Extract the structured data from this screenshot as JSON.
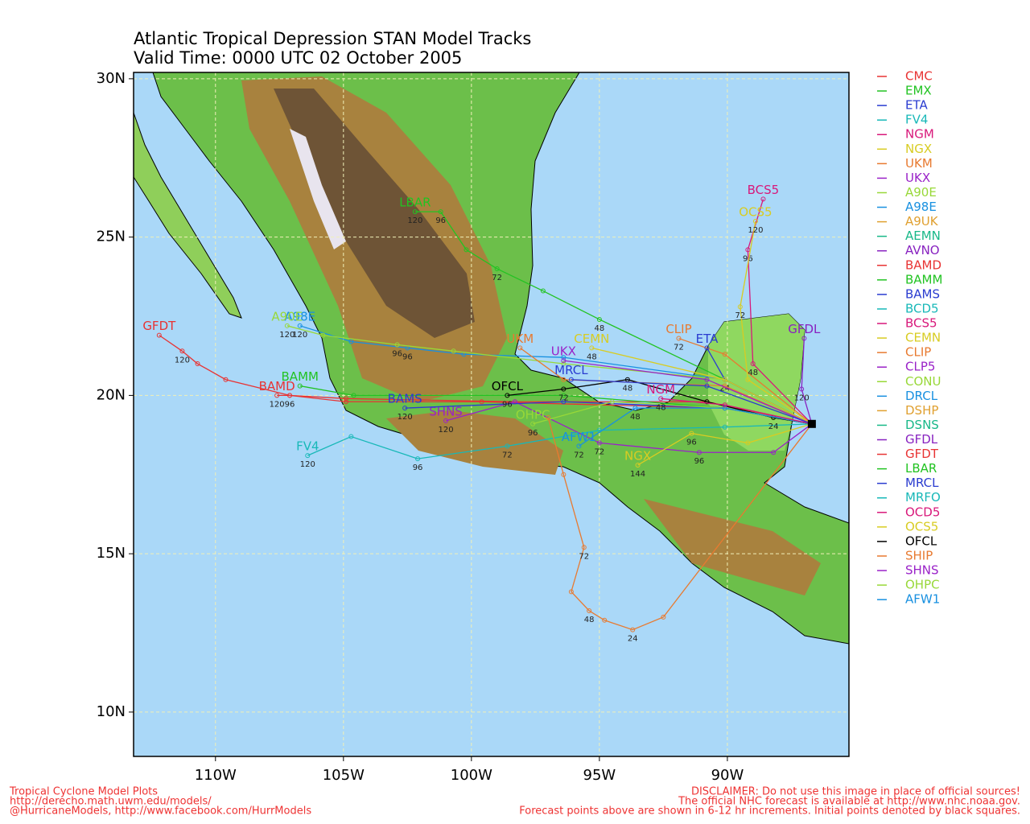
{
  "chart_data": {
    "type": "track-map",
    "title": "Atlantic Tropical Depression STAN Model Tracks",
    "subtitle": "Valid Time: 0000 UTC 02 October 2005",
    "xlim": [
      -113.2,
      -85.25
    ],
    "ylim": [
      8.6,
      30.2
    ],
    "xticks": [
      {
        "value": -110,
        "label": "110W"
      },
      {
        "value": -105,
        "label": "105W"
      },
      {
        "value": -100,
        "label": "100W"
      },
      {
        "value": -95,
        "label": "95W"
      },
      {
        "value": -90,
        "label": "90W"
      }
    ],
    "yticks": [
      {
        "value": 10,
        "label": "10N"
      },
      {
        "value": 15,
        "label": "15N"
      },
      {
        "value": 20,
        "label": "20N"
      },
      {
        "value": 25,
        "label": "25N"
      },
      {
        "value": 30,
        "label": "30N"
      }
    ],
    "grid": true,
    "legend": [
      {
        "name": "CMC",
        "color": "#e83333"
      },
      {
        "name": "EMX",
        "color": "#22c322"
      },
      {
        "name": "ETA",
        "color": "#2a3cd0"
      },
      {
        "name": "FV4",
        "color": "#18b8b8"
      },
      {
        "name": "NGM",
        "color": "#d8187a"
      },
      {
        "name": "NGX",
        "color": "#d8cc22"
      },
      {
        "name": "UKM",
        "color": "#e87a30"
      },
      {
        "name": "UKX",
        "color": "#9a22c8"
      },
      {
        "name": "A90E",
        "color": "#98d838"
      },
      {
        "name": "A98E",
        "color": "#1890e0"
      },
      {
        "name": "A9UK",
        "color": "#e0a030"
      },
      {
        "name": "AEMN",
        "color": "#18b888"
      },
      {
        "name": "AVNO",
        "color": "#8822c0"
      },
      {
        "name": "BAMD",
        "color": "#e83333"
      },
      {
        "name": "BAMM",
        "color": "#22c322"
      },
      {
        "name": "BAMS",
        "color": "#2a3cd0"
      },
      {
        "name": "BCD5",
        "color": "#18b8b8"
      },
      {
        "name": "BCS5",
        "color": "#d8187a"
      },
      {
        "name": "CEMN",
        "color": "#d8cc22"
      },
      {
        "name": "CLIP",
        "color": "#e87a30"
      },
      {
        "name": "CLP5",
        "color": "#9a22c8"
      },
      {
        "name": "CONU",
        "color": "#98d838"
      },
      {
        "name": "DRCL",
        "color": "#1890e0"
      },
      {
        "name": "DSHP",
        "color": "#e0a030"
      },
      {
        "name": "DSNS",
        "color": "#18b888"
      },
      {
        "name": "GFDL",
        "color": "#8822c0"
      },
      {
        "name": "GFDT",
        "color": "#e83333"
      },
      {
        "name": "LBAR",
        "color": "#22c322"
      },
      {
        "name": "MRCL",
        "color": "#2a3cd0"
      },
      {
        "name": "MRFO",
        "color": "#18b8b8"
      },
      {
        "name": "OCD5",
        "color": "#d8187a"
      },
      {
        "name": "OCS5",
        "color": "#d8cc22"
      },
      {
        "name": "OFCL",
        "color": "#000000"
      },
      {
        "name": "SHIP",
        "color": "#e87a30"
      },
      {
        "name": "SHNS",
        "color": "#9a22c8"
      },
      {
        "name": "OHPC",
        "color": "#98d838"
      },
      {
        "name": "AFW1",
        "color": "#1890e0"
      }
    ],
    "tracks": [
      {
        "label": "GFDT",
        "color": "#e83333",
        "lon": [
          -86.7,
          -90.8,
          -98.3,
          -104.9,
          -107.1,
          -109.6,
          -110.7,
          -111.3,
          -112.2
        ],
        "lat": [
          19.1,
          19.8,
          19.8,
          19.9,
          20.0,
          20.5,
          21.0,
          21.4,
          21.9
        ],
        "hours": [
          null,
          null,
          null,
          null,
          null,
          null,
          null,
          120,
          null
        ]
      },
      {
        "label": "BAMD",
        "color": "#e83333",
        "lon": [
          -86.7,
          -90.1,
          -99.6,
          -104.9,
          -107.1,
          -107.6
        ],
        "lat": [
          19.1,
          19.6,
          19.8,
          19.8,
          20.0,
          20.0
        ],
        "hours": [
          null,
          null,
          null,
          null,
          96,
          120
        ]
      },
      {
        "label": "BAMM",
        "color": "#22c322",
        "lon": [
          -86.7,
          -90.1,
          -96.4,
          -104.6,
          -106.7
        ],
        "lat": [
          19.1,
          19.6,
          20.0,
          20.0,
          20.3
        ],
        "hours": [
          null,
          null,
          null,
          null,
          null
        ]
      },
      {
        "label": "A98E",
        "color": "#1890e0",
        "lon": [
          -86.7,
          -90.1,
          -96.4,
          -100.3,
          -102.5,
          -104.7,
          -106.7
        ],
        "lat": [
          19.1,
          20.5,
          21.2,
          21.3,
          21.5,
          21.7,
          22.2
        ],
        "hours": [
          null,
          null,
          null,
          null,
          96,
          null,
          120
        ]
      },
      {
        "label": "A90E",
        "color": "#98d838",
        "lon": [
          -86.7,
          -90.1,
          -96.4,
          -100.7,
          -102.9,
          -105.8,
          -107.2
        ],
        "lat": [
          19.1,
          20.5,
          21.0,
          21.4,
          21.6,
          21.9,
          22.2
        ],
        "hours": [
          null,
          null,
          null,
          null,
          96,
          null,
          120
        ]
      },
      {
        "label": "FV4",
        "color": "#18b8b8",
        "lon": [
          -86.7,
          -90.1,
          -95.0,
          -98.6,
          -102.1,
          -104.7,
          -106.4
        ],
        "lat": [
          19.1,
          19.0,
          18.9,
          18.4,
          18.0,
          18.7,
          18.1
        ],
        "hours": [
          null,
          null,
          null,
          72,
          96,
          null,
          120
        ]
      },
      {
        "label": "LBAR",
        "color": "#22c322",
        "lon": [
          -86.7,
          -90.1,
          -95.0,
          -97.2,
          -99.0,
          -100.2,
          -101.2,
          -102.2
        ],
        "lat": [
          19.1,
          20.5,
          22.4,
          23.3,
          24.0,
          24.6,
          25.8,
          25.8
        ],
        "hours": [
          null,
          null,
          48,
          null,
          72,
          null,
          96,
          120
        ]
      },
      {
        "label": "SHNS",
        "color": "#9a22c8",
        "lon": [
          -86.7,
          -88.2,
          -91.1,
          -95.0,
          -98.3,
          -101.0
        ],
        "lat": [
          19.1,
          18.2,
          18.2,
          18.5,
          19.8,
          19.2
        ],
        "hours": [
          null,
          null,
          96,
          72,
          null,
          120
        ]
      },
      {
        "label": "BAMS",
        "color": "#2a3cd0",
        "lon": [
          -86.7,
          -90.1,
          -96.4,
          -102.6
        ],
        "lat": [
          19.1,
          19.6,
          19.8,
          19.6
        ],
        "hours": [
          null,
          null,
          null,
          120
        ]
      },
      {
        "label": "OFCL",
        "color": "#000000",
        "lon": [
          -86.7,
          -88.2,
          -90.8,
          -93.9,
          -96.4,
          -98.6
        ],
        "lat": [
          19.1,
          19.3,
          19.8,
          20.5,
          20.2,
          20.0
        ],
        "hours": [
          null,
          24,
          null,
          48,
          72,
          96
        ]
      },
      {
        "label": "OHPC",
        "color": "#98d838",
        "lon": [
          -86.7,
          -90.1,
          -94.5,
          -97.6
        ],
        "lat": [
          19.1,
          19.6,
          19.8,
          19.1
        ],
        "hours": [
          null,
          null,
          null,
          96
        ]
      },
      {
        "label": "AFW1",
        "color": "#1890e0",
        "lon": [
          -86.7,
          -90.1,
          -93.6,
          -95.8
        ],
        "lat": [
          19.1,
          19.6,
          19.6,
          18.4
        ],
        "hours": [
          null,
          null,
          48,
          72
        ]
      },
      {
        "label": "NGX",
        "color": "#d8cc22",
        "lon": [
          -86.7,
          -89.2,
          -91.4,
          -93.5
        ],
        "lat": [
          19.1,
          18.5,
          18.8,
          17.8
        ],
        "hours": [
          null,
          null,
          96,
          144
        ]
      },
      {
        "label": "CLIP",
        "color": "#e87a30",
        "lon": [
          -86.7,
          -90.1,
          -91.9
        ],
        "lat": [
          19.1,
          21.3,
          21.8
        ],
        "hours": [
          null,
          null,
          72
        ]
      },
      {
        "label": "ETA",
        "color": "#2a3cd0",
        "lon": [
          -86.7,
          -90.1,
          -90.8
        ],
        "lat": [
          19.1,
          20.5,
          21.5
        ],
        "hours": [
          null,
          24,
          null
        ]
      },
      {
        "label": "GFDL",
        "color": "#8822c0",
        "lon": [
          -86.7,
          -87.1,
          -87.0
        ],
        "lat": [
          19.1,
          20.2,
          21.8
        ],
        "hours": [
          null,
          120,
          null
        ]
      },
      {
        "label": "BCS5",
        "color": "#d8187a",
        "lon": [
          -86.7,
          -89.0,
          -89.2,
          -88.6
        ],
        "lat": [
          19.1,
          21.0,
          24.6,
          26.2
        ],
        "hours": [
          null,
          48,
          96,
          null
        ]
      },
      {
        "label": "OCS5",
        "color": "#d8cc22",
        "lon": [
          -86.7,
          -89.2,
          -89.5,
          -88.9
        ],
        "lat": [
          19.1,
          20.5,
          22.8,
          25.5
        ],
        "hours": [
          null,
          null,
          72,
          120
        ]
      },
      {
        "label": "UKM",
        "color": "#e87a30",
        "lon": [
          -86.7,
          -90.1,
          -96.4,
          -98.1
        ],
        "lat": [
          19.1,
          20.3,
          20.5,
          21.5
        ],
        "hours": [
          null,
          null,
          null,
          null
        ]
      },
      {
        "label": "CEMN",
        "color": "#d8cc22",
        "lon": [
          -86.7,
          -90.1,
          -95.3
        ],
        "lat": [
          19.1,
          20.5,
          21.5
        ],
        "hours": [
          null,
          null,
          48
        ]
      },
      {
        "label": "UKX",
        "color": "#9a22c8",
        "lon": [
          -86.7,
          -90.8,
          -96.4
        ],
        "lat": [
          19.1,
          20.5,
          21.1
        ],
        "hours": [
          null,
          null,
          null
        ]
      },
      {
        "label": "NGM",
        "color": "#d8187a",
        "lon": [
          -86.7,
          -90.1,
          -92.6
        ],
        "lat": [
          19.1,
          19.7,
          19.9
        ],
        "hours": [
          null,
          null,
          48
        ]
      },
      {
        "label": "MRCL",
        "color": "#2a3cd0",
        "lon": [
          -86.7,
          -90.8,
          -96.1
        ],
        "lat": [
          19.1,
          20.3,
          20.5
        ],
        "hours": [
          null,
          null,
          null
        ]
      },
      {
        "color": "#e87a30",
        "lon": [
          -86.7,
          -92.5,
          -93.7,
          -94.8,
          -95.4,
          -96.1,
          -95.6,
          -96.4,
          -97.0
        ],
        "lat": [
          19.1,
          13.0,
          12.6,
          12.9,
          13.2,
          13.8,
          15.2,
          17.5,
          19.3
        ],
        "hours": [
          null,
          null,
          24,
          null,
          48,
          null,
          72,
          null,
          null
        ]
      }
    ],
    "footer_left": [
      "Tropical Cyclone Model Plots",
      "http://derecho.math.uwm.edu/models/",
      "@HurricaneModels, http://www.facebook.com/HurrModels"
    ],
    "footer_right": [
      "DISCLAIMER: Do not use this image in place of official sources!",
      "The official NHC forecast is available at http://www.nhc.noaa.gov.",
      "Forecast points above are shown in 6-12 hr increments. Initial points denoted by black squares."
    ]
  }
}
